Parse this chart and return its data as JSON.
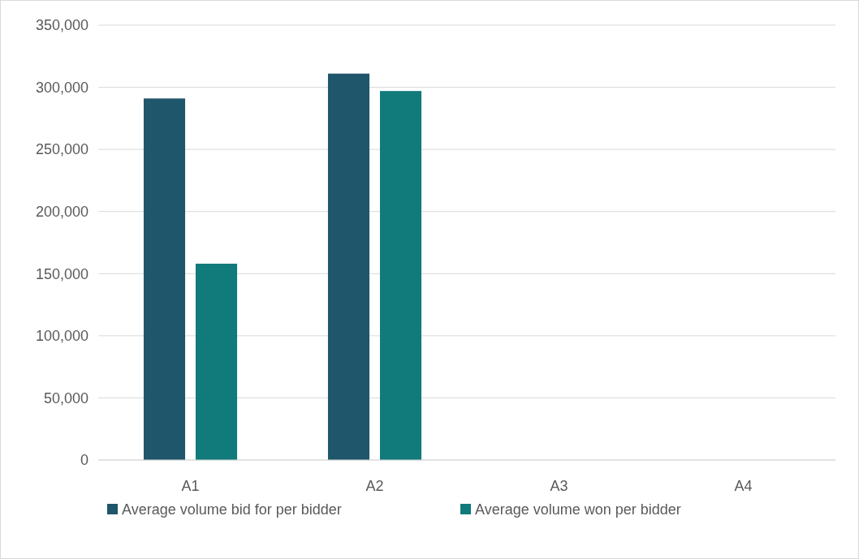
{
  "chart_data": {
    "type": "bar",
    "categories": [
      "A1",
      "A2",
      "A3",
      "A4"
    ],
    "series": [
      {
        "name": "Average volume bid for per bidder",
        "color": "#1f566b",
        "values": [
          291000,
          311000,
          null,
          null
        ]
      },
      {
        "name": "Average volume won per bidder",
        "color": "#117a7a",
        "values": [
          158000,
          297000,
          null,
          null
        ]
      }
    ],
    "ylim": [
      0,
      350000
    ],
    "yticks": [
      0,
      {
        "value": 50000,
        "label": "50,000"
      },
      {
        "value": 100000,
        "label": "100,000"
      },
      {
        "value": 150000,
        "label": "150,000"
      },
      {
        "value": 200000,
        "label": "200,000"
      },
      {
        "value": 250000,
        "label": "250,000"
      },
      {
        "value": 300000,
        "label": "300,000"
      },
      {
        "value": 350000,
        "label": "350,000"
      }
    ],
    "grid": "y",
    "legend": "bottom"
  }
}
